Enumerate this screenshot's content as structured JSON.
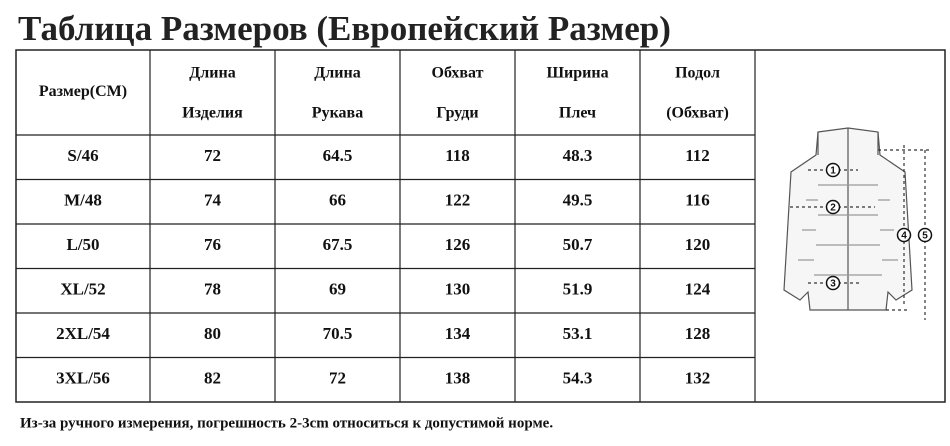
{
  "title": "Таблица Размеров (Европейский Размер)",
  "table": {
    "header": [
      [
        "Размер(CM)"
      ],
      [
        "Длина",
        "Изделия"
      ],
      [
        "Длина",
        "Рукава"
      ],
      [
        "Обхват",
        "Груди"
      ],
      [
        "Ширина",
        "Плеч"
      ],
      [
        "Подол",
        "(Обхват)"
      ]
    ],
    "rows": [
      [
        "S/46",
        "72",
        "64.5",
        "118",
        "48.3",
        "112"
      ],
      [
        "M/48",
        "74",
        "66",
        "122",
        "49.5",
        "116"
      ],
      [
        "L/50",
        "76",
        "67.5",
        "126",
        "50.7",
        "120"
      ],
      [
        "XL/52",
        "78",
        "69",
        "130",
        "51.9",
        "124"
      ],
      [
        "2XL/54",
        "80",
        "70.5",
        "134",
        "53.1",
        "128"
      ],
      [
        "3XL/56",
        "82",
        "72",
        "138",
        "54.3",
        "132"
      ]
    ]
  },
  "diagram": {
    "markers": [
      "1",
      "2",
      "3",
      "4",
      "5"
    ]
  },
  "footnote": "Из-за ручного измерения, погрешность 2-3cm относиться к допустимой норме."
}
